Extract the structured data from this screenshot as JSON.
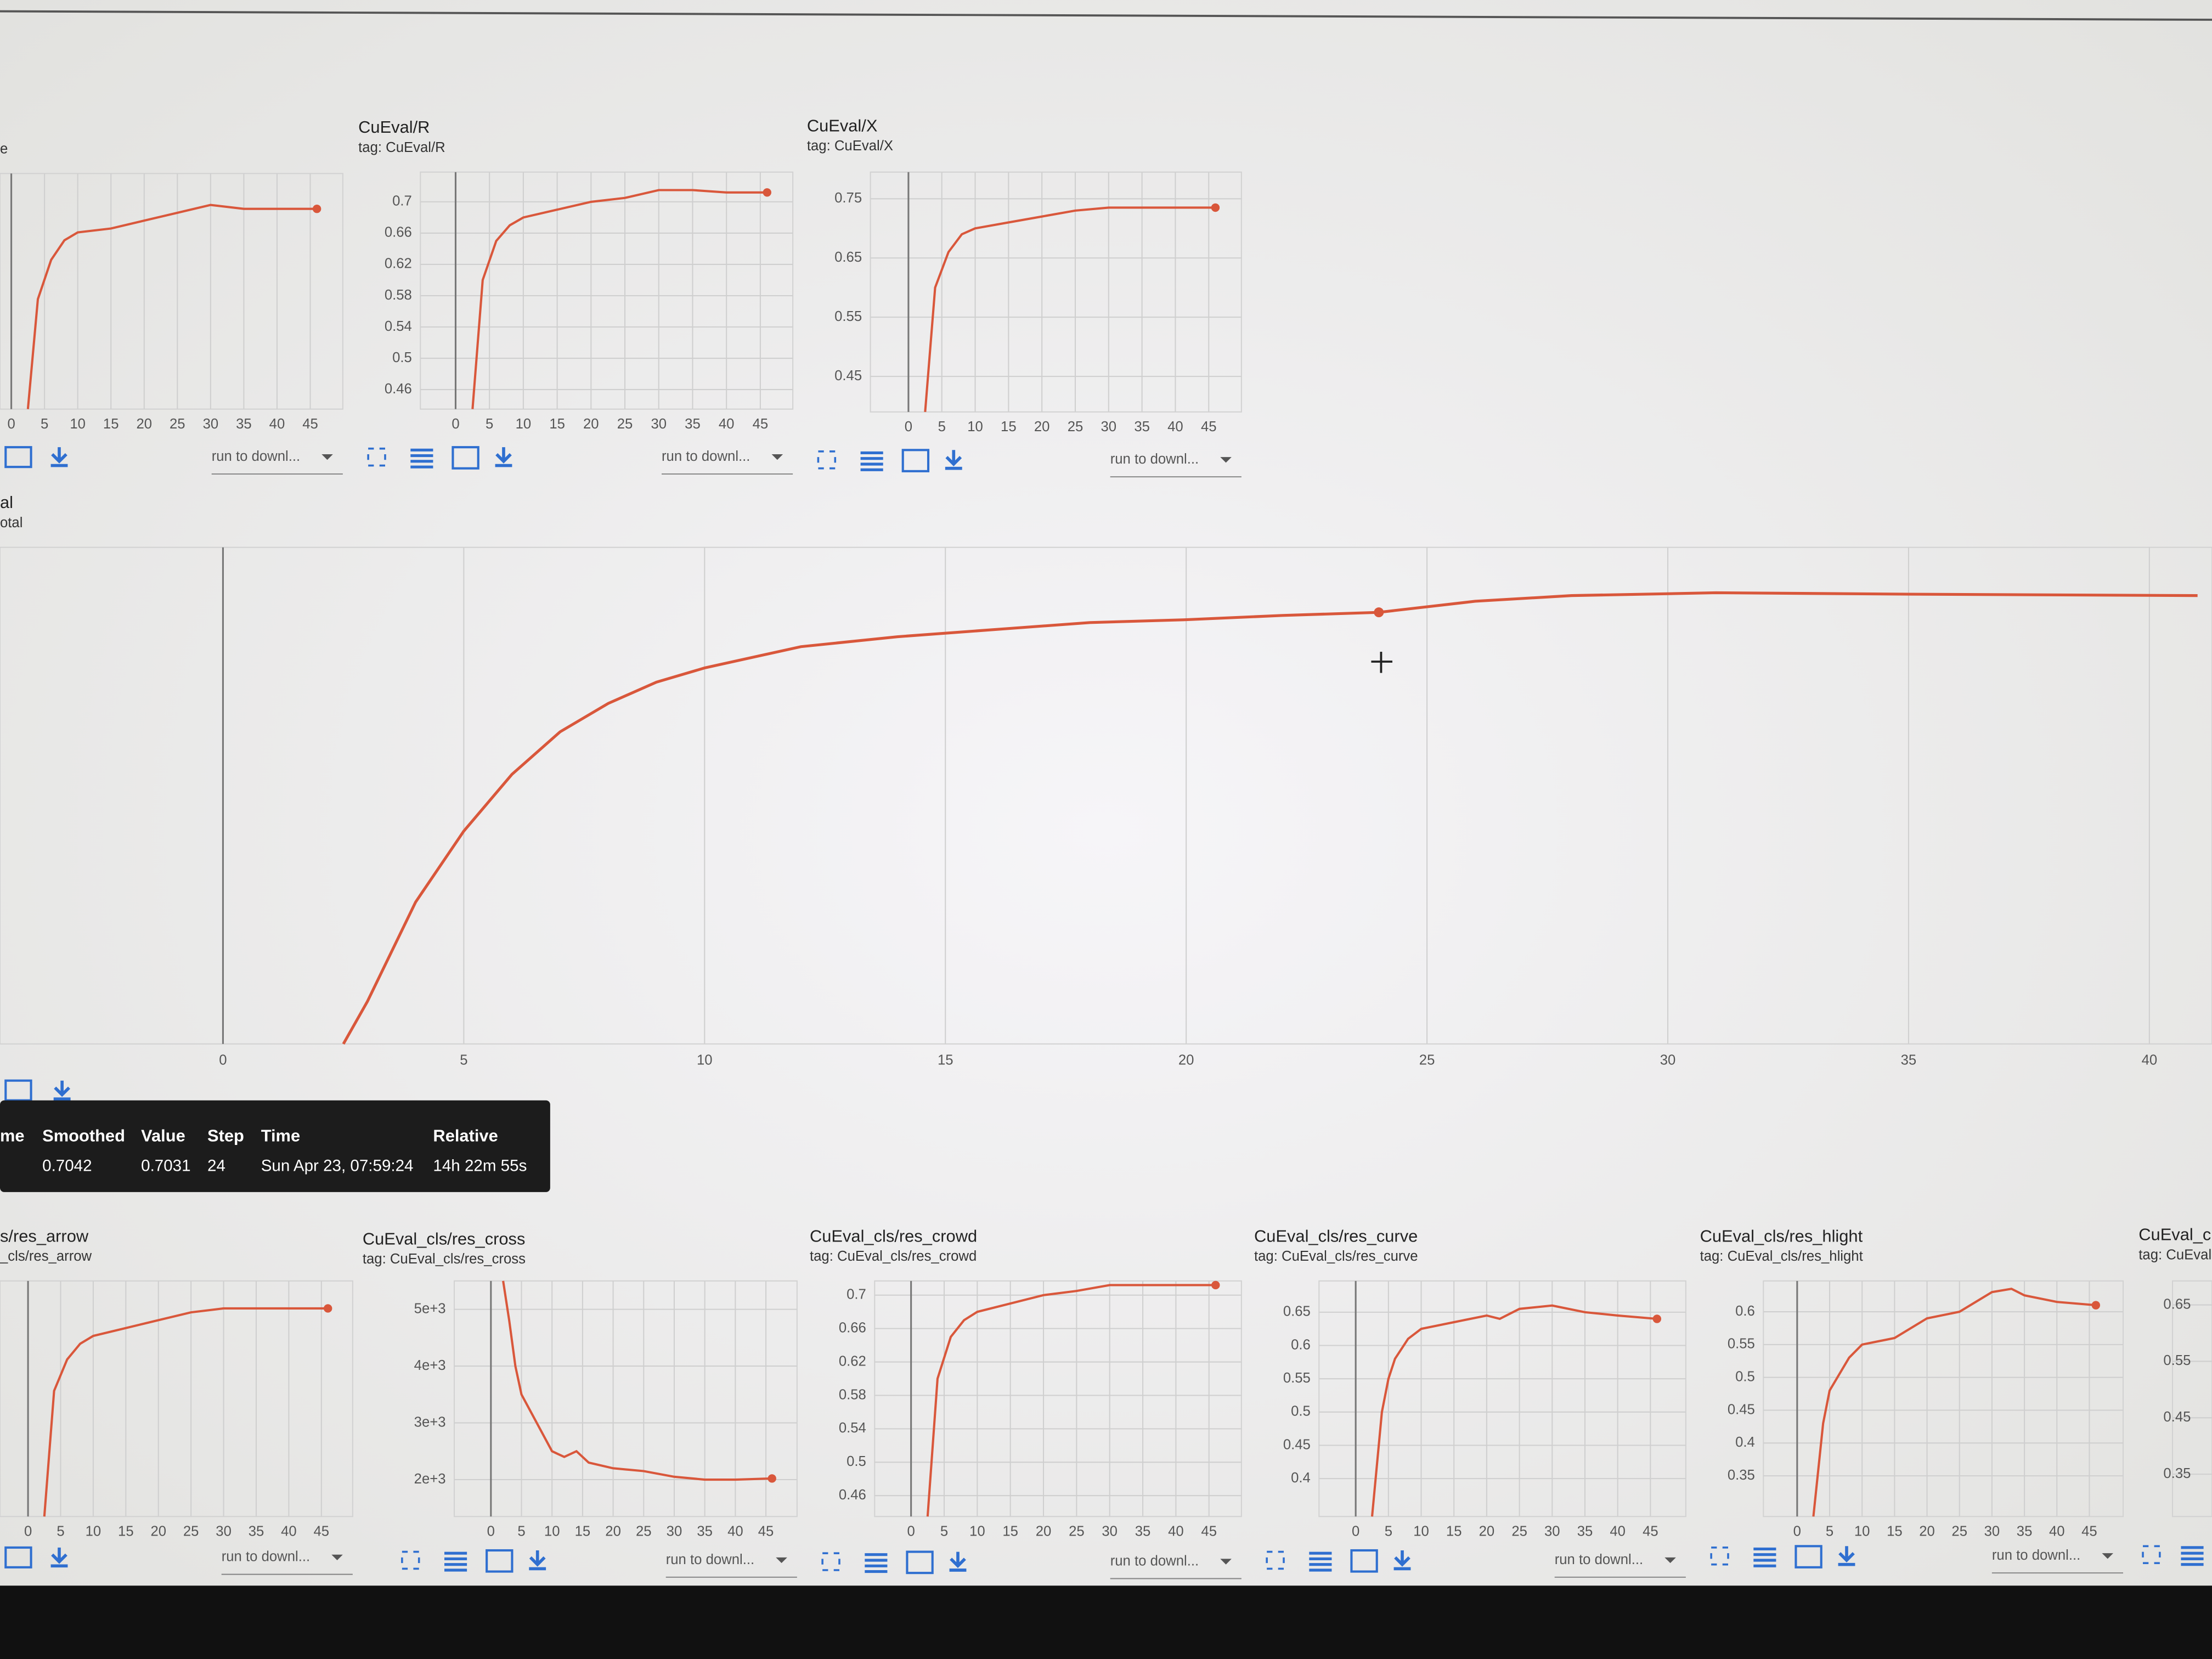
{
  "chart_data": [
    {
      "type": "line",
      "subtitle": "e",
      "color": "#d9573b",
      "grid": true,
      "x": [
        2.5,
        4,
        6,
        8,
        10,
        15,
        20,
        25,
        30,
        35,
        40,
        46
      ],
      "values": [
        0.44,
        0.58,
        0.63,
        0.655,
        0.665,
        0.67,
        0.68,
        0.69,
        0.7,
        0.695,
        0.695,
        0.695
      ],
      "xlim": [
        -1.7,
        49.9
      ],
      "ylim": [
        0.44,
        0.74
      ],
      "xticks": [
        0,
        5,
        10,
        15,
        20,
        25,
        30,
        35,
        40,
        45
      ]
    },
    {
      "type": "line",
      "title": "CuEval/R",
      "subtitle": "tag: CuEval/R",
      "color": "#d9573b",
      "grid": true,
      "x": [
        2.5,
        4,
        6,
        8,
        10,
        15,
        20,
        25,
        30,
        35,
        40,
        46
      ],
      "values": [
        0.435,
        0.6,
        0.65,
        0.67,
        0.68,
        0.69,
        0.7,
        0.705,
        0.715,
        0.715,
        0.712,
        0.712
      ],
      "xlim": [
        -5.2,
        49.8
      ],
      "ylim": [
        0.435,
        0.738
      ],
      "xticks": [
        0,
        5,
        10,
        15,
        20,
        25,
        30,
        35,
        40,
        45
      ],
      "yticks": [
        0.46,
        0.5,
        0.54,
        0.58,
        0.62,
        0.66,
        0.7
      ]
    },
    {
      "type": "line",
      "title": "CuEval/X",
      "subtitle": "tag: CuEval/X",
      "color": "#d9573b",
      "grid": true,
      "x": [
        2.5,
        4,
        6,
        8,
        10,
        15,
        20,
        25,
        30,
        35,
        40,
        46
      ],
      "values": [
        0.39,
        0.6,
        0.66,
        0.69,
        0.7,
        0.71,
        0.72,
        0.73,
        0.735,
        0.735,
        0.735,
        0.735
      ],
      "xlim": [
        -5.7,
        49.9
      ],
      "ylim": [
        0.39,
        0.795
      ],
      "xticks": [
        0,
        5,
        10,
        15,
        20,
        25,
        30,
        35,
        40,
        45
      ],
      "yticks": [
        0.45,
        0.55,
        0.65,
        0.75
      ]
    },
    {
      "type": "line",
      "title": "al",
      "subtitle": "otal",
      "color": "#d9573b",
      "grid": true,
      "x": [
        2.5,
        3,
        4,
        5,
        6,
        7,
        8,
        9,
        10,
        12,
        14,
        16,
        18,
        20,
        22,
        24,
        26,
        28,
        31,
        35,
        41
      ],
      "values": [
        0.4,
        0.43,
        0.5,
        0.55,
        0.59,
        0.62,
        0.64,
        0.655,
        0.665,
        0.68,
        0.687,
        0.692,
        0.697,
        0.699,
        0.702,
        0.7042,
        0.712,
        0.716,
        0.718,
        0.717,
        0.716
      ],
      "xlim": [
        -4.63,
        41.3
      ],
      "ylim": [
        0.4,
        0.75
      ],
      "xticks": [
        0,
        5,
        10,
        15,
        20,
        25,
        30,
        35,
        40
      ]
    },
    {
      "type": "line",
      "title": "s/res_arrow",
      "subtitle": "_cls/res_arrow",
      "color": "#d9573b",
      "grid": true,
      "x": [
        2.5,
        4,
        6,
        8,
        10,
        15,
        20,
        25,
        30,
        35,
        40,
        46
      ],
      "values": [
        0.44,
        0.6,
        0.64,
        0.66,
        0.67,
        0.68,
        0.69,
        0.7,
        0.705,
        0.705,
        0.705,
        0.705
      ],
      "xlim": [
        -4.3,
        49.8
      ],
      "ylim": [
        0.44,
        0.74
      ],
      "xticks": [
        0,
        5,
        10,
        15,
        20,
        25,
        30,
        35,
        40,
        45
      ]
    },
    {
      "type": "line",
      "title": "CuEval_cls/res_cross",
      "subtitle": "tag: CuEval_cls/res_cross",
      "color": "#d9573b",
      "grid": true,
      "x": [
        2,
        3,
        4,
        5,
        6,
        8,
        10,
        12,
        14,
        16,
        20,
        25,
        30,
        35,
        40,
        46
      ],
      "values": [
        5500,
        4800,
        4000,
        3500,
        3300,
        2900,
        2500,
        2400,
        2500,
        2300,
        2200,
        2150,
        2050,
        2000,
        2000,
        2020
      ],
      "xlim": [
        -6,
        50.1
      ],
      "ylim": [
        1350,
        5500
      ],
      "xticks": [
        0,
        5,
        10,
        15,
        20,
        25,
        30,
        35,
        40,
        45
      ],
      "yticks": [
        {
          "value": 2000,
          "label": "2e+3"
        },
        {
          "value": 3000,
          "label": "3e+3"
        },
        {
          "value": 4000,
          "label": "4e+3"
        },
        {
          "value": 5000,
          "label": "5e+3"
        }
      ]
    },
    {
      "type": "line",
      "title": "CuEval_cls/res_crowd",
      "subtitle": "tag: CuEval_cls/res_crowd",
      "color": "#d9573b",
      "grid": true,
      "x": [
        2.5,
        4,
        6,
        8,
        10,
        15,
        20,
        25,
        30,
        35,
        40,
        46
      ],
      "values": [
        0.435,
        0.6,
        0.65,
        0.67,
        0.68,
        0.69,
        0.7,
        0.705,
        0.712,
        0.712,
        0.712,
        0.712
      ],
      "xlim": [
        -5.5,
        49.9
      ],
      "ylim": [
        0.435,
        0.717
      ],
      "xticks": [
        0,
        5,
        10,
        15,
        20,
        25,
        30,
        35,
        40,
        45
      ],
      "yticks": [
        0.46,
        0.5,
        0.54,
        0.58,
        0.62,
        0.66,
        0.7
      ]
    },
    {
      "type": "line",
      "title": "CuEval_cls/res_curve",
      "subtitle": "tag: CuEval_cls/res_curve",
      "color": "#d9573b",
      "grid": true,
      "x": [
        2.5,
        4,
        5,
        6,
        8,
        10,
        15,
        20,
        22,
        25,
        30,
        35,
        40,
        46
      ],
      "values": [
        0.343,
        0.5,
        0.55,
        0.58,
        0.61,
        0.625,
        0.635,
        0.645,
        0.64,
        0.655,
        0.66,
        0.65,
        0.645,
        0.64
      ],
      "xlim": [
        -5.6,
        50.4
      ],
      "ylim": [
        0.343,
        0.697
      ],
      "xticks": [
        0,
        5,
        10,
        15,
        20,
        25,
        30,
        35,
        40,
        45
      ],
      "yticks": [
        0.4,
        0.45,
        0.5,
        0.55,
        0.6,
        0.65
      ]
    },
    {
      "type": "line",
      "title": "CuEval_cls/res_hlight",
      "subtitle": "tag: CuEval_cls/res_hlight",
      "color": "#d9573b",
      "grid": true,
      "x": [
        2.5,
        4,
        5,
        8,
        10,
        15,
        20,
        25,
        30,
        33,
        35,
        40,
        46
      ],
      "values": [
        0.288,
        0.43,
        0.48,
        0.53,
        0.55,
        0.56,
        0.59,
        0.6,
        0.63,
        0.635,
        0.625,
        0.615,
        0.61
      ],
      "xlim": [
        -5.2,
        50.2
      ],
      "ylim": [
        0.288,
        0.647
      ],
      "xticks": [
        0,
        5,
        10,
        15,
        20,
        25,
        30,
        35,
        40,
        45
      ],
      "yticks": [
        0.35,
        0.4,
        0.45,
        0.5,
        0.55,
        0.6
      ]
    },
    {
      "type": "line",
      "title": "CuEval_cl",
      "subtitle": "tag: CuEval",
      "color": "#d9573b",
      "grid": true,
      "ylim": [
        0.275,
        0.6925
      ],
      "yticks": [
        0.35,
        0.45,
        0.55,
        0.65
      ]
    }
  ],
  "tooltip": {
    "headers": [
      "me",
      "Smoothed",
      "Value",
      "Step",
      "Time",
      "Relative"
    ],
    "row": {
      "smoothed": 0.7042,
      "value": 0.7031,
      "step": 24,
      "time": "Sun Apr 23, 07:59:24",
      "relative": "14h 22m 55s"
    }
  },
  "controls": {
    "run_selector": "run to downl..."
  }
}
